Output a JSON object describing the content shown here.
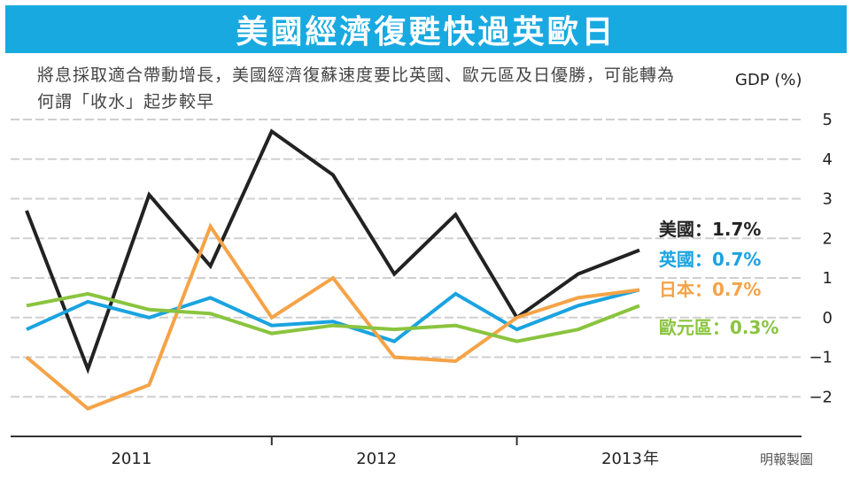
{
  "header": {
    "title": "美國經濟復甦快過英歐日",
    "subtitle": "將息採取適合帶動增長，美國經濟復蘇速度要比英國、歐元區及日優勝，可能轉為何謂「收水」起步較早",
    "source": "明報製圖"
  },
  "chart_data": {
    "type": "line",
    "title": "美國經濟復甦快過英歐日",
    "ylabel": "GDP (%)",
    "xlabel": "",
    "ylim": [
      -3,
      5
    ],
    "yticks": [
      5,
      4,
      3,
      2,
      1,
      0,
      -1,
      -2
    ],
    "grid": true,
    "legend_position": "right",
    "x": [
      "2010Q4",
      "2011Q1",
      "2011Q2",
      "2011Q3",
      "2011Q4",
      "2012Q1",
      "2012Q2",
      "2012Q3",
      "2012Q4",
      "2013Q1",
      "2013Q2",
      "2013Q3"
    ],
    "x_tick_labels": [
      {
        "index": 2,
        "text": "2011"
      },
      {
        "index": 6,
        "text": "2012"
      },
      {
        "index": 10,
        "text": "2013"
      }
    ],
    "x_unit_label": "年",
    "series": [
      {
        "name": "美國",
        "last_label": "1.7%",
        "color": "#222222",
        "values": [
          2.7,
          -1.3,
          3.1,
          1.3,
          4.7,
          3.6,
          1.1,
          2.6,
          0.0,
          1.1,
          1.7,
          null
        ]
      },
      {
        "name": "英國",
        "last_label": "0.7%",
        "color": "#1aa3e0",
        "values": [
          -0.3,
          0.4,
          0.0,
          0.5,
          -0.2,
          -0.1,
          -0.6,
          0.6,
          -0.3,
          0.3,
          0.7,
          null
        ]
      },
      {
        "name": "日本",
        "last_label": "0.7%",
        "color": "#f5a347",
        "values": [
          -1.0,
          -2.3,
          -1.7,
          2.3,
          0.0,
          1.0,
          -1.0,
          -1.1,
          0.0,
          0.5,
          0.7,
          null
        ]
      },
      {
        "name": "歐元區",
        "last_label": "0.3%",
        "color": "#8ac43f",
        "values": [
          0.3,
          0.6,
          0.2,
          0.1,
          -0.4,
          -0.2,
          -0.3,
          -0.2,
          -0.6,
          -0.3,
          0.3,
          null
        ]
      }
    ]
  },
  "colors": {
    "banner": "#19a9e1",
    "grid": "#cfcfcf",
    "axis": "#333333"
  }
}
